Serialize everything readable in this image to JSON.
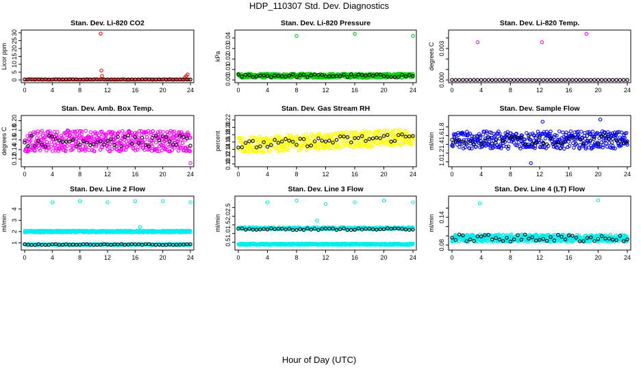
{
  "title": "HDP_110307  Std. Dev. Diagnostics",
  "footer_xlabel": "Hour of Day (UTC)",
  "colors": {
    "red": "#ff0000",
    "green": "#00cc00",
    "magenta": "#ff00ff",
    "yellow": "#ffff00",
    "blue": "#0000ff",
    "cyan": "#00eeee",
    "black": "#000000"
  },
  "chart_data": [
    {
      "type": "scatter",
      "title": "Stan. Dev. Li-820 CO2",
      "ylabel": "Licor ppm",
      "xlabel": "",
      "xlim": [
        0,
        24
      ],
      "ylim": [
        0,
        30
      ],
      "xticks": [
        0,
        4,
        8,
        12,
        16,
        20,
        24
      ],
      "yticks": [
        0,
        5,
        10,
        15,
        20,
        25,
        30
      ],
      "ytick_labels": [
        "0",
        "5",
        "10",
        "15",
        "20",
        "25",
        "30"
      ],
      "series": [
        {
          "color": "red",
          "baseline": 0.3,
          "spread": 0.2,
          "step": 0.25,
          "x": [
            11.0,
            11.1,
            11.2,
            23.2,
            23.4,
            23.6
          ],
          "y": [
            29.5,
            6.0,
            2.5,
            1.5,
            2.5,
            3.5
          ]
        },
        {
          "color": "black",
          "baseline": 0.3,
          "spread": 0.1,
          "step": 0.5,
          "x": [],
          "y": []
        }
      ]
    },
    {
      "type": "scatter",
      "title": "Stan. Dev. Li-820 Pressure",
      "ylabel": "kPa",
      "xlabel": "",
      "xlim": [
        0,
        24
      ],
      "ylim": [
        0,
        0.045
      ],
      "xticks": [
        0,
        4,
        8,
        12,
        16,
        20,
        24
      ],
      "yticks": [
        0,
        0.01,
        0.02,
        0.03,
        0.04
      ],
      "ytick_labels": [
        "0.00",
        "0.01",
        "0.02",
        "0.03",
        "0.04"
      ],
      "series": [
        {
          "color": "green",
          "baseline": 0.004,
          "spread": 0.002,
          "step": 0.05,
          "x": [
            8.0,
            16.0,
            24.0
          ],
          "y": [
            0.042,
            0.044,
            0.042
          ]
        },
        {
          "color": "black",
          "baseline": 0.004,
          "spread": 0.0015,
          "step": 0.5,
          "x": [],
          "y": []
        }
      ]
    },
    {
      "type": "scatter",
      "title": "Stan. Dev. Li-820 Temp.",
      "ylabel": "degrees C",
      "xlabel": "",
      "xlim": [
        0,
        24
      ],
      "ylim": [
        0,
        0.0045
      ],
      "xticks": [
        0,
        4,
        8,
        12,
        16,
        20,
        24
      ],
      "yticks": [
        0,
        0.001,
        0.002,
        0.003,
        0.004
      ],
      "ytick_labels": [
        "0.000",
        "",
        "",
        "0.003",
        ""
      ],
      "series": [
        {
          "color": "magenta",
          "baseline": 0.0,
          "spread": 0.0,
          "step": 0.5,
          "x": [
            3.5,
            12.3,
            18.4
          ],
          "y": [
            0.0036,
            0.0036,
            0.0044
          ]
        },
        {
          "color": "black",
          "baseline": 0.0,
          "spread": 0.0,
          "step": 0.5,
          "x": [],
          "y": []
        }
      ]
    },
    {
      "type": "scatter",
      "title": "Stan. Dev. Amb. Box Temp.",
      "ylabel": "degrees C",
      "xlabel": "",
      "xlim": [
        0,
        24
      ],
      "ylim": [
        0.11,
        0.205
      ],
      "xticks": [
        0,
        4,
        8,
        12,
        16,
        20,
        24
      ],
      "yticks": [
        0.12,
        0.14,
        0.16,
        0.18,
        0.2
      ],
      "ytick_labels": [
        "0.12",
        "0.14",
        "0.16",
        "0.18",
        "0.20"
      ],
      "series": [
        {
          "color": "magenta",
          "baseline": 0.158,
          "spread": 0.022,
          "step": 0.05,
          "x": [
            24.0
          ],
          "y": [
            0.112
          ]
        },
        {
          "color": "black",
          "baseline": 0.158,
          "spread": 0.012,
          "step": 0.5,
          "x": [],
          "y": []
        }
      ]
    },
    {
      "type": "scatter",
      "title": "Stan. Dev. Gas Stream RH",
      "ylabel": "percent",
      "xlabel": "",
      "xlim": [
        0,
        24
      ],
      "ylim": [
        0.1,
        0.225
      ],
      "xticks": [
        0,
        4,
        8,
        12,
        16,
        20,
        24
      ],
      "yticks": [
        0.1,
        0.12,
        0.14,
        0.16,
        0.18,
        0.2,
        0.22
      ],
      "ytick_labels": [
        "0.10",
        "0.12",
        "0.14",
        "0.16",
        "0.18",
        "0.20",
        "0.22"
      ],
      "series": [
        {
          "color": "yellow",
          "baseline": 0.15,
          "trend": 0.025,
          "spread": 0.022,
          "step": 0.05,
          "x": [],
          "y": []
        },
        {
          "color": "black",
          "baseline": 0.15,
          "trend": 0.025,
          "spread": 0.012,
          "step": 0.5,
          "x": [],
          "y": []
        }
      ]
    },
    {
      "type": "scatter",
      "title": "Stan. Dev. Sample Flow",
      "ylabel": "ml/min",
      "xlabel": "",
      "xlim": [
        0,
        24
      ],
      "ylim": [
        0.95,
        2.0
      ],
      "xticks": [
        0,
        4,
        8,
        12,
        16,
        20,
        24
      ],
      "yticks": [
        1.0,
        1.2,
        1.4,
        1.6,
        1.8
      ],
      "ytick_labels": [
        "1.0",
        "1.2",
        "1.4",
        "1.6",
        "1.8"
      ],
      "series": [
        {
          "color": "blue",
          "baseline": 1.5,
          "spread": 0.2,
          "step": 0.06,
          "x": [
            10.8,
            20.3,
            12.4
          ],
          "y": [
            0.97,
            1.97,
            1.92
          ]
        },
        {
          "color": "black",
          "baseline": 1.5,
          "spread": 0.1,
          "step": 0.5,
          "x": [],
          "y": []
        }
      ]
    },
    {
      "type": "scatter",
      "title": "Stan. Dev. Line 2 Flow",
      "ylabel": "ml/min",
      "xlabel": "",
      "xlim": [
        0,
        24
      ],
      "ylim": [
        0.6,
        4.9
      ],
      "xticks": [
        0,
        4,
        8,
        12,
        16,
        20,
        24
      ],
      "yticks": [
        1,
        2,
        3,
        4
      ],
      "ytick_labels": [
        "1",
        "2",
        "3",
        "4"
      ],
      "series": [
        {
          "color": "cyan",
          "baseline": 2.0,
          "spread": 0.08,
          "step": 0.05,
          "x": [
            4.0,
            8.0,
            12.0,
            16.0,
            20.0,
            24.0,
            16.7
          ],
          "y": [
            4.6,
            4.7,
            4.6,
            4.7,
            4.7,
            4.6,
            2.4
          ]
        },
        {
          "color": "cyan",
          "baseline": 0.85,
          "spread": 0.05,
          "step": 0.08,
          "x": [],
          "y": []
        },
        {
          "color": "black",
          "baseline": 0.85,
          "spread": 0.04,
          "step": 0.5,
          "x": [],
          "y": []
        }
      ]
    },
    {
      "type": "scatter",
      "title": "Stan. Dev. Line 3 Flow",
      "ylabel": "ml/min",
      "xlabel": "",
      "xlim": [
        0,
        24
      ],
      "ylim": [
        0.2,
        3.0
      ],
      "xticks": [
        0,
        4,
        8,
        12,
        16,
        20,
        24
      ],
      "yticks": [
        0.5,
        1.0,
        1.5,
        2.0,
        2.5
      ],
      "ytick_labels": [
        "0.5",
        "1.0",
        "1.5",
        "2.0",
        "2.5"
      ],
      "series": [
        {
          "color": "cyan",
          "baseline": 1.3,
          "spread": 0.06,
          "step": 0.08,
          "x": [
            4.0,
            8.0,
            12.0,
            16.0,
            20.0,
            24.0,
            10.8
          ],
          "y": [
            2.8,
            2.9,
            2.7,
            2.8,
            2.9,
            2.8,
            1.75
          ]
        },
        {
          "color": "cyan",
          "baseline": 0.38,
          "spread": 0.04,
          "step": 0.05,
          "x": [],
          "y": []
        },
        {
          "color": "black",
          "baseline": 1.25,
          "spread": 0.05,
          "step": 0.5,
          "x": [],
          "y": []
        }
      ]
    },
    {
      "type": "scatter",
      "title": "Stan. Dev. Line 4 (LT) Flow",
      "ylabel": "ml/min",
      "xlabel": "",
      "xlim": [
        0,
        24
      ],
      "ylim": [
        0.075,
        0.18
      ],
      "xticks": [
        0,
        4,
        8,
        12,
        16,
        20,
        24
      ],
      "yticks": [
        0.08,
        0.1,
        0.12,
        0.14,
        0.16
      ],
      "ytick_labels": [
        "0.08",
        "",
        "",
        "0.14",
        ""
      ],
      "series": [
        {
          "color": "cyan",
          "baseline": 0.095,
          "spread": 0.008,
          "step": 0.05,
          "x": [
            3.8,
            20.0
          ],
          "y": [
            0.17,
            0.177
          ]
        },
        {
          "color": "black",
          "baseline": 0.095,
          "spread": 0.008,
          "step": 0.5,
          "x": [],
          "y": []
        }
      ]
    }
  ]
}
